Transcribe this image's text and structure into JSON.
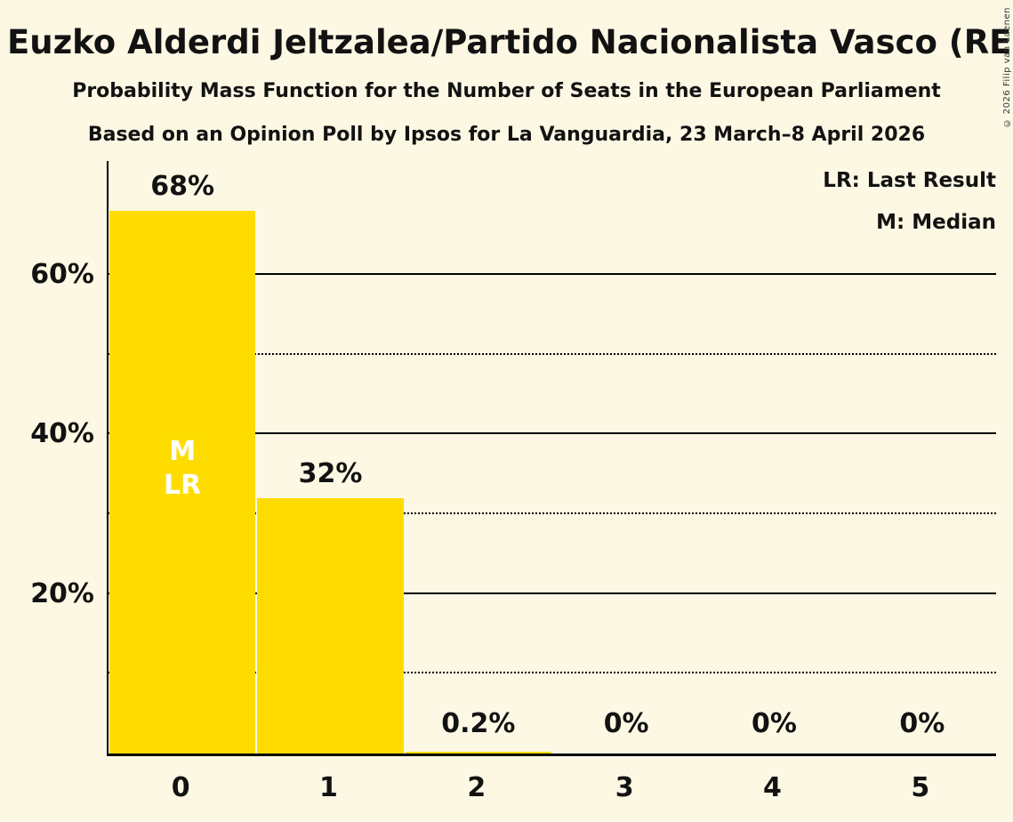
{
  "title": "Euzko Alderdi Jeltzalea/Partido Nacionalista Vasco (RE)",
  "subtitle_line1": "Probability Mass Function for the Number of Seats in the European Parliament",
  "subtitle_line2": "Based on an Opinion Poll by Ipsos for La Vanguardia, 23 March–8 April 2026",
  "legend": {
    "last_result": "LR: Last Result",
    "median": "M: Median"
  },
  "copyright": "© 2026 Filip van Laenen",
  "colors": {
    "background": "#FCF8E4",
    "bar": "#FFDC00",
    "text": "#121212",
    "inside_bar_text": "#FFFFFF",
    "gridline": "#000000"
  },
  "chart_data": {
    "type": "bar",
    "title": "Euzko Alderdi Jeltzalea/Partido Nacionalista Vasco (RE)",
    "categories": [
      "0",
      "1",
      "2",
      "3",
      "4",
      "5"
    ],
    "values": [
      68,
      32,
      0.2,
      0,
      0,
      0
    ],
    "value_labels": [
      "68%",
      "32%",
      "0.2%",
      "0%",
      "0%",
      "0%"
    ],
    "ylim": [
      0,
      74.3
    ],
    "major_gridlines": {
      "values": [
        20,
        40,
        60
      ],
      "labels": [
        "20%",
        "40%",
        "60%"
      ]
    },
    "minor_gridlines": [
      10,
      30,
      50
    ],
    "annotations": [
      {
        "category_index": 0,
        "lines": [
          "M",
          "LR"
        ]
      }
    ],
    "legend_position": "top-right",
    "grid": true
  }
}
